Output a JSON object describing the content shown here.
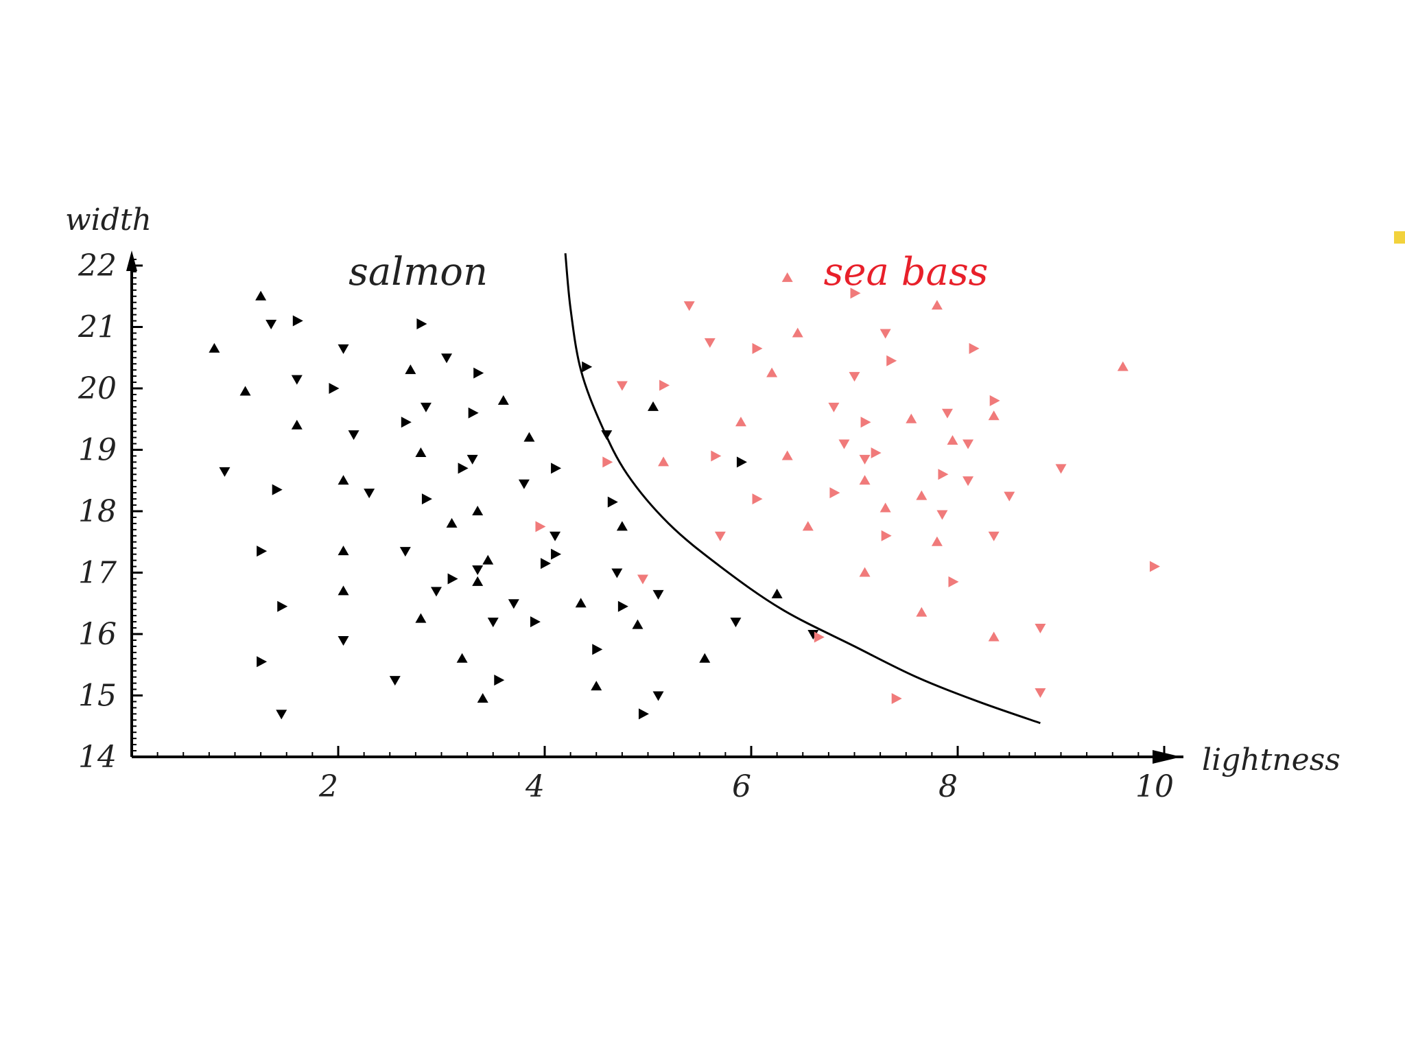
{
  "chart_data": {
    "type": "scatter",
    "title": "",
    "xlabel": "lightness",
    "ylabel": "width",
    "xlim": [
      0,
      10.4
    ],
    "ylim": [
      14,
      22.2
    ],
    "x_ticks": [
      2,
      4,
      6,
      8,
      10
    ],
    "y_ticks": [
      14,
      15,
      16,
      17,
      18,
      19,
      20,
      21,
      22
    ],
    "grid": false,
    "legend": "none",
    "annotations": [
      {
        "text": "salmon",
        "x": 2.3,
        "y": 21.8,
        "color": "#222222"
      },
      {
        "text": "sea bass",
        "x": 7.3,
        "y": 21.8,
        "color": "#e8202a"
      }
    ],
    "series": [
      {
        "color": "#000000",
        "points": [
          [
            1.25,
            21.5
          ],
          [
            1.35,
            21.05
          ],
          [
            1.6,
            21.1
          ],
          [
            0.8,
            20.65
          ],
          [
            2.05,
            20.65
          ],
          [
            2.8,
            21.05
          ],
          [
            1.1,
            19.95
          ],
          [
            1.6,
            20.15
          ],
          [
            1.95,
            20.0
          ],
          [
            2.7,
            20.3
          ],
          [
            3.05,
            20.5
          ],
          [
            3.35,
            20.25
          ],
          [
            3.6,
            19.8
          ],
          [
            2.85,
            19.7
          ],
          [
            3.3,
            19.6
          ],
          [
            1.6,
            19.4
          ],
          [
            2.15,
            19.25
          ],
          [
            2.65,
            19.45
          ],
          [
            2.8,
            18.95
          ],
          [
            3.3,
            18.85
          ],
          [
            3.2,
            18.7
          ],
          [
            3.85,
            19.2
          ],
          [
            0.9,
            18.65
          ],
          [
            1.4,
            18.35
          ],
          [
            2.05,
            18.5
          ],
          [
            2.3,
            18.3
          ],
          [
            2.85,
            18.2
          ],
          [
            3.35,
            18.0
          ],
          [
            3.8,
            18.45
          ],
          [
            4.1,
            18.7
          ],
          [
            3.1,
            17.8
          ],
          [
            4.1,
            17.6
          ],
          [
            1.25,
            17.35
          ],
          [
            2.05,
            17.35
          ],
          [
            2.65,
            17.35
          ],
          [
            4.1,
            17.3
          ],
          [
            3.45,
            17.2
          ],
          [
            3.35,
            17.05
          ],
          [
            4.0,
            17.15
          ],
          [
            2.05,
            16.7
          ],
          [
            2.95,
            16.7
          ],
          [
            3.1,
            16.9
          ],
          [
            3.35,
            16.85
          ],
          [
            3.7,
            16.5
          ],
          [
            1.45,
            16.45
          ],
          [
            2.8,
            16.25
          ],
          [
            3.5,
            16.2
          ],
          [
            3.9,
            16.2
          ],
          [
            4.35,
            16.5
          ],
          [
            2.05,
            15.9
          ],
          [
            1.25,
            15.55
          ],
          [
            3.2,
            15.6
          ],
          [
            2.55,
            15.25
          ],
          [
            3.55,
            15.25
          ],
          [
            3.4,
            14.95
          ],
          [
            1.45,
            14.7
          ],
          [
            4.4,
            20.35
          ],
          [
            5.05,
            19.7
          ],
          [
            4.6,
            19.25
          ],
          [
            4.65,
            18.15
          ],
          [
            4.75,
            17.75
          ],
          [
            4.7,
            17.0
          ],
          [
            4.75,
            16.45
          ],
          [
            4.9,
            16.15
          ],
          [
            5.1,
            16.65
          ],
          [
            4.5,
            15.75
          ],
          [
            4.5,
            15.15
          ],
          [
            5.1,
            15.0
          ],
          [
            4.95,
            14.7
          ],
          [
            5.55,
            15.6
          ],
          [
            5.85,
            16.2
          ],
          [
            5.9,
            18.8
          ],
          [
            6.25,
            16.65
          ],
          [
            6.6,
            16.0
          ]
        ]
      },
      {
        "color": "#f07a7a",
        "points": [
          [
            6.35,
            21.8
          ],
          [
            5.4,
            21.35
          ],
          [
            7.0,
            21.55
          ],
          [
            7.8,
            21.35
          ],
          [
            5.6,
            20.75
          ],
          [
            6.05,
            20.65
          ],
          [
            6.45,
            20.9
          ],
          [
            7.3,
            20.9
          ],
          [
            8.15,
            20.65
          ],
          [
            6.2,
            20.25
          ],
          [
            7.0,
            20.2
          ],
          [
            7.35,
            20.45
          ],
          [
            9.6,
            20.35
          ],
          [
            4.75,
            20.05
          ],
          [
            5.15,
            20.05
          ],
          [
            5.9,
            19.45
          ],
          [
            6.8,
            19.7
          ],
          [
            7.1,
            19.45
          ],
          [
            7.55,
            19.5
          ],
          [
            7.9,
            19.6
          ],
          [
            8.35,
            19.8
          ],
          [
            8.35,
            19.55
          ],
          [
            6.9,
            19.1
          ],
          [
            7.2,
            18.95
          ],
          [
            7.95,
            19.15
          ],
          [
            8.1,
            19.1
          ],
          [
            5.65,
            18.9
          ],
          [
            6.35,
            18.9
          ],
          [
            7.1,
            18.85
          ],
          [
            4.6,
            18.8
          ],
          [
            5.15,
            18.8
          ],
          [
            9.0,
            18.7
          ],
          [
            7.85,
            18.6
          ],
          [
            7.1,
            18.5
          ],
          [
            8.1,
            18.5
          ],
          [
            6.8,
            18.3
          ],
          [
            7.65,
            18.25
          ],
          [
            8.5,
            18.25
          ],
          [
            6.05,
            18.2
          ],
          [
            7.3,
            18.05
          ],
          [
            7.85,
            17.95
          ],
          [
            3.95,
            17.75
          ],
          [
            6.55,
            17.75
          ],
          [
            5.7,
            17.6
          ],
          [
            7.3,
            17.6
          ],
          [
            7.8,
            17.5
          ],
          [
            8.35,
            17.6
          ],
          [
            9.9,
            17.1
          ],
          [
            7.1,
            17.0
          ],
          [
            4.95,
            16.9
          ],
          [
            7.95,
            16.85
          ],
          [
            7.65,
            16.35
          ],
          [
            8.8,
            16.1
          ],
          [
            6.65,
            15.95
          ],
          [
            8.35,
            15.95
          ],
          [
            8.8,
            15.05
          ],
          [
            7.4,
            14.95
          ]
        ]
      }
    ],
    "decision_boundary": [
      [
        4.2,
        22.2
      ],
      [
        4.25,
        21.3
      ],
      [
        4.35,
        20.3
      ],
      [
        4.55,
        19.4
      ],
      [
        4.8,
        18.6
      ],
      [
        5.2,
        17.8
      ],
      [
        5.7,
        17.1
      ],
      [
        6.3,
        16.4
      ],
      [
        7.0,
        15.8
      ],
      [
        7.6,
        15.3
      ],
      [
        8.2,
        14.9
      ],
      [
        8.8,
        14.55
      ]
    ]
  }
}
